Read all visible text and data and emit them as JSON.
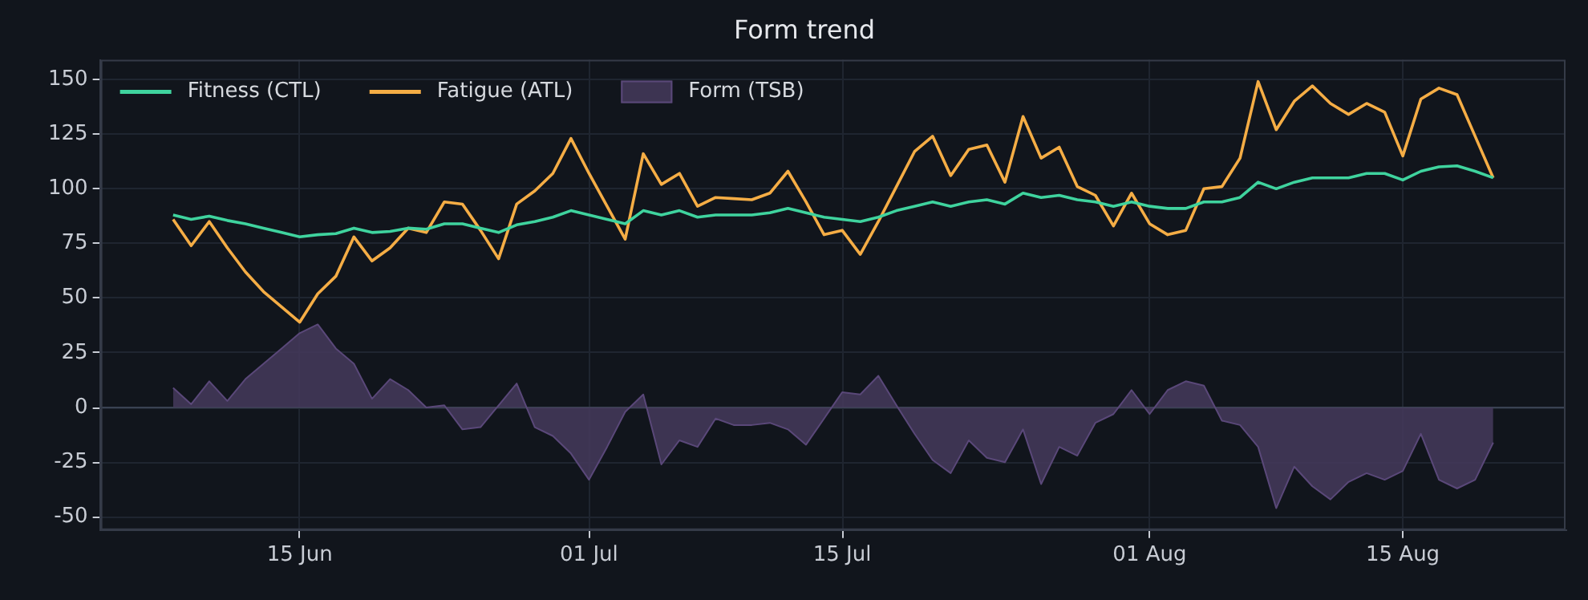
{
  "chart_data": {
    "type": "line",
    "title": "Form trend",
    "x": [
      "--06-08",
      "--06-09",
      "--06-10",
      "--06-11",
      "--06-12",
      "--06-13",
      "--06-14",
      "--06-15",
      "--06-16",
      "--06-17",
      "--06-18",
      "--06-19",
      "--06-20",
      "--06-21",
      "--06-22",
      "--06-23",
      "--06-24",
      "--06-25",
      "--06-26",
      "--06-27",
      "--06-28",
      "--06-29",
      "--06-30",
      "--07-01",
      "--07-02",
      "--07-03",
      "--07-04",
      "--07-05",
      "--07-06",
      "--07-07",
      "--07-08",
      "--07-09",
      "--07-10",
      "--07-11",
      "--07-12",
      "--07-13",
      "--07-14",
      "--07-15",
      "--07-16",
      "--07-17",
      "--07-18",
      "--07-19",
      "--07-20",
      "--07-21",
      "--07-22",
      "--07-23",
      "--07-24",
      "--07-25",
      "--07-26",
      "--07-27",
      "--07-28",
      "--07-29",
      "--07-30",
      "--07-31",
      "--08-01",
      "--08-02",
      "--08-03",
      "--08-04",
      "--08-05",
      "--08-06",
      "--08-07",
      "--08-08",
      "--08-09",
      "--08-10",
      "--08-11",
      "--08-12",
      "--08-13",
      "--08-14",
      "--08-15",
      "--08-16",
      "--08-17",
      "--08-18",
      "--08-19",
      "--08-20"
    ],
    "series": [
      {
        "name": "Fitness (CTL)",
        "type": "line",
        "color": "#3fd39e",
        "values": [
          88,
          86,
          87.5,
          85.5,
          84,
          82,
          80,
          78,
          79,
          79.5,
          82,
          80,
          80.5,
          82,
          81.5,
          84,
          84,
          82,
          80,
          83.5,
          85,
          87,
          90,
          88,
          86,
          84,
          90,
          88,
          90,
          87,
          88,
          88,
          88,
          89,
          91,
          89,
          87,
          86,
          85,
          87,
          90,
          92,
          94,
          92,
          94,
          95,
          93,
          98,
          96,
          97,
          95,
          94,
          92,
          94,
          92,
          91,
          91,
          94,
          94,
          96,
          103,
          100,
          103,
          105,
          105,
          105,
          107,
          107,
          104,
          108,
          110,
          110.5,
          108,
          105
        ]
      },
      {
        "name": "Fatigue (ATL)",
        "type": "line",
        "color": "#f5ad45",
        "values": [
          86,
          74,
          85,
          73,
          62,
          53,
          46,
          39,
          52,
          60,
          78,
          67,
          73,
          82,
          80,
          94,
          93,
          81,
          68,
          93,
          99,
          107,
          123,
          107,
          92,
          77,
          116,
          102,
          107,
          92,
          96,
          95.5,
          95,
          98,
          108,
          94,
          79,
          81,
          70,
          85,
          101,
          117,
          124,
          106,
          118,
          120,
          103,
          133,
          114,
          119,
          101,
          97,
          83,
          98,
          84,
          79,
          81,
          100,
          101,
          114,
          149,
          127,
          140,
          147,
          139,
          134,
          139,
          135,
          115,
          141,
          146,
          143,
          124,
          105
        ]
      },
      {
        "name": "Form (TSB)",
        "type": "area",
        "color": "#45395c",
        "values": [
          9,
          1.5,
          12,
          3,
          13,
          20,
          27,
          34,
          38,
          27,
          20,
          4,
          13,
          8,
          0,
          1,
          -10,
          -9,
          1,
          11,
          -9,
          -13,
          -21,
          -33,
          -18,
          -2,
          6,
          -26,
          -15,
          -18,
          -5,
          -8,
          -8,
          -7,
          -10,
          -17,
          -5,
          7,
          6,
          14.5,
          1,
          -12,
          -24,
          -30,
          -15,
          -23,
          -25,
          -10,
          -35,
          -18,
          -22,
          -7,
          -3,
          8,
          -3,
          8,
          12,
          10,
          -6,
          -8,
          -18,
          -46,
          -27,
          -36,
          -42,
          -34,
          -30,
          -33,
          -29,
          -12,
          -33,
          -37,
          -33,
          -16
        ]
      }
    ],
    "xlim": [
      "--06-04",
      "--08-24"
    ],
    "xticks": [
      {
        "value": "--06-15",
        "label": "15 Jun"
      },
      {
        "value": "--07-01",
        "label": "01 Jul"
      },
      {
        "value": "--07-15",
        "label": "15 Jul"
      },
      {
        "value": "--08-01",
        "label": "01 Aug"
      },
      {
        "value": "--08-15",
        "label": "15 Aug"
      }
    ],
    "ylim": [
      -56,
      159
    ],
    "yticks": [
      -50,
      -25,
      0,
      25,
      50,
      75,
      100,
      125,
      150
    ],
    "ref_lines": [
      {
        "axis": "y",
        "value": 0,
        "color": "#3a4252"
      }
    ],
    "grid": true,
    "legend": "top left",
    "marker": "none",
    "line_style": "solid"
  }
}
